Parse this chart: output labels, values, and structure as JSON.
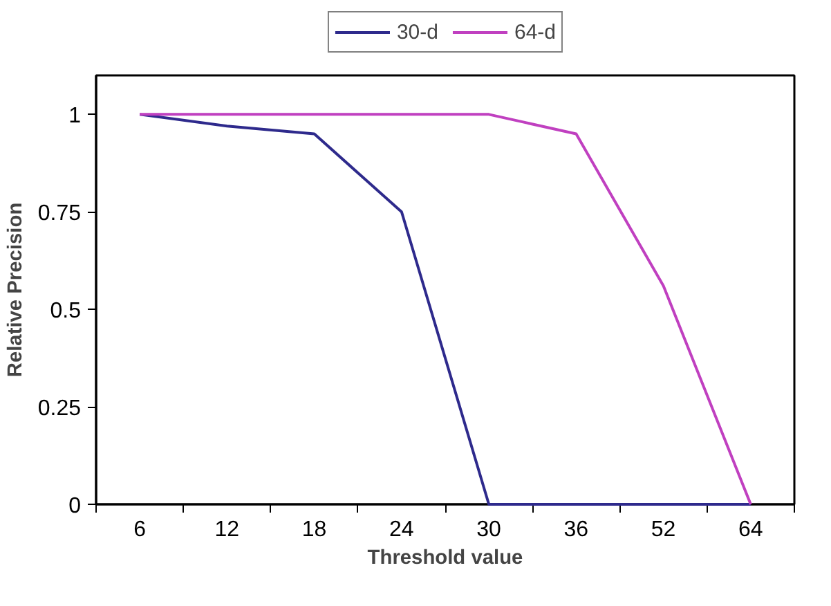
{
  "chart_data": {
    "type": "line",
    "xlabel": "Threshold value",
    "ylabel": "Relative Precision",
    "categories": [
      "6",
      "12",
      "18",
      "24",
      "30",
      "36",
      "52",
      "64"
    ],
    "series": [
      {
        "name": "30-d",
        "color": "#2e2a8c",
        "values": [
          1,
          0.97,
          0.95,
          0.75,
          0,
          0,
          0,
          0
        ]
      },
      {
        "name": "64-d",
        "color": "#c040c0",
        "values": [
          1,
          1,
          1,
          1,
          1,
          0.95,
          0.56,
          0
        ]
      }
    ],
    "ylim": [
      0,
      1.1
    ],
    "yticks": [
      0,
      0.25,
      0.5,
      0.75,
      1
    ],
    "grid": false,
    "legend": "top",
    "marker": "none",
    "line_style": "solid"
  }
}
